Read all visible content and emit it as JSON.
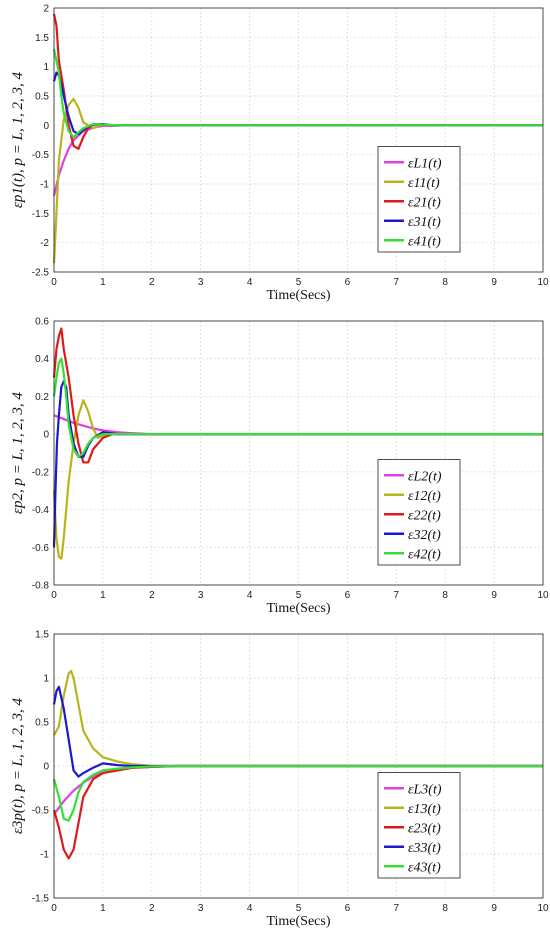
{
  "chart_data": [
    {
      "type": "line",
      "xlabel": "Time(Secs)",
      "ylabel": "εp1(t), p = L, 1, 2, 3, 4",
      "xlim": [
        0,
        10
      ],
      "ylim": [
        -2.5,
        2
      ],
      "xticks": [
        "0",
        "1",
        "2",
        "3",
        "4",
        "5",
        "6",
        "7",
        "8",
        "9",
        "10"
      ],
      "yticks": [
        "2",
        "1.5",
        "1",
        "0.5",
        "0",
        "-0.5",
        "-1",
        "-1.5",
        "-2",
        "-2.5"
      ],
      "grid": true,
      "legend_position": "lower-right",
      "series": [
        {
          "name": "εL1(t)",
          "color": "#e040e0",
          "x": [
            0,
            0.1,
            0.2,
            0.3,
            0.4,
            0.6,
            0.8,
            1.0,
            1.5,
            2,
            10
          ],
          "y": [
            -1.2,
            -0.85,
            -0.6,
            -0.4,
            -0.25,
            -0.1,
            -0.04,
            -0.01,
            0,
            0,
            0
          ]
        },
        {
          "name": "ε11(t)",
          "color": "#b8b41a",
          "x": [
            0,
            0.05,
            0.1,
            0.2,
            0.3,
            0.4,
            0.5,
            0.6,
            0.8,
            1.0,
            1.2,
            1.5,
            10
          ],
          "y": [
            -2.35,
            -1.5,
            -0.6,
            0.1,
            0.35,
            0.45,
            0.3,
            0.05,
            -0.05,
            0.02,
            0,
            0,
            0
          ]
        },
        {
          "name": "ε21(t)",
          "color": "#dd1a1a",
          "x": [
            0,
            0.05,
            0.1,
            0.2,
            0.3,
            0.4,
            0.5,
            0.6,
            0.7,
            0.8,
            1.0,
            1.2,
            1.5,
            10
          ],
          "y": [
            1.9,
            1.7,
            1.1,
            0.6,
            0.0,
            -0.35,
            -0.4,
            -0.2,
            -0.05,
            0.02,
            0.01,
            0,
            0,
            0
          ]
        },
        {
          "name": "ε31(t)",
          "color": "#1a1acc",
          "x": [
            0,
            0.05,
            0.1,
            0.15,
            0.2,
            0.3,
            0.4,
            0.5,
            0.6,
            0.7,
            0.8,
            1.0,
            1.2,
            1.5,
            10
          ],
          "y": [
            0.75,
            0.9,
            0.85,
            0.7,
            0.5,
            0.15,
            -0.1,
            -0.15,
            -0.08,
            -0.02,
            0.01,
            0.02,
            0,
            0,
            0
          ]
        },
        {
          "name": "ε41(t)",
          "color": "#33e033",
          "x": [
            0,
            0.05,
            0.1,
            0.15,
            0.2,
            0.3,
            0.4,
            0.5,
            0.6,
            0.8,
            1.0,
            1.5,
            10
          ],
          "y": [
            1.3,
            1.1,
            0.9,
            0.5,
            0.2,
            -0.1,
            -0.2,
            -0.12,
            -0.05,
            0.02,
            0.01,
            0,
            0
          ]
        }
      ]
    },
    {
      "type": "line",
      "xlabel": "Time(Secs)",
      "ylabel": "εp2, p = L, 1, 2, 3, 4",
      "xlim": [
        0,
        10
      ],
      "ylim": [
        -0.8,
        0.6
      ],
      "xticks": [
        "0",
        "1",
        "2",
        "3",
        "4",
        "5",
        "6",
        "7",
        "8",
        "9",
        "10"
      ],
      "yticks": [
        "0.6",
        "0.4",
        "0.2",
        "0",
        "-0.2",
        "-0.4",
        "-0.6",
        "-0.8"
      ],
      "grid": true,
      "legend_position": "lower-right",
      "series": [
        {
          "name": "εL2(t)",
          "color": "#e040e0",
          "x": [
            0,
            0.2,
            0.4,
            0.6,
            0.8,
            1.0,
            1.3,
            1.6,
            2,
            10
          ],
          "y": [
            0.1,
            0.08,
            0.06,
            0.045,
            0.03,
            0.02,
            0.01,
            0.005,
            0,
            0
          ]
        },
        {
          "name": "ε12(t)",
          "color": "#b8b41a",
          "x": [
            0,
            0.05,
            0.1,
            0.15,
            0.2,
            0.25,
            0.3,
            0.35,
            0.4,
            0.5,
            0.6,
            0.7,
            0.8,
            0.9,
            1.0,
            1.2,
            1.5,
            10
          ],
          "y": [
            -0.3,
            -0.55,
            -0.65,
            -0.66,
            -0.55,
            -0.4,
            -0.25,
            -0.15,
            -0.05,
            0.1,
            0.18,
            0.12,
            0.03,
            -0.02,
            -0.01,
            0,
            0,
            0
          ]
        },
        {
          "name": "ε22(t)",
          "color": "#dd1a1a",
          "x": [
            0,
            0.05,
            0.1,
            0.15,
            0.2,
            0.3,
            0.4,
            0.5,
            0.6,
            0.7,
            0.8,
            1.0,
            1.2,
            1.5,
            10
          ],
          "y": [
            0.3,
            0.45,
            0.52,
            0.56,
            0.45,
            0.3,
            0.1,
            -0.05,
            -0.15,
            -0.15,
            -0.08,
            -0.02,
            0.0,
            0,
            0
          ]
        },
        {
          "name": "ε32(t)",
          "color": "#1a1acc",
          "x": [
            0,
            0.03,
            0.06,
            0.1,
            0.15,
            0.2,
            0.25,
            0.3,
            0.4,
            0.5,
            0.6,
            0.7,
            0.8,
            1.0,
            1.3,
            1.5,
            10
          ],
          "y": [
            -0.6,
            -0.3,
            -0.05,
            0.1,
            0.25,
            0.28,
            0.25,
            0.1,
            -0.05,
            -0.12,
            -0.12,
            -0.06,
            -0.02,
            0.01,
            0,
            0,
            0
          ]
        },
        {
          "name": "ε42(t)",
          "color": "#33e033",
          "x": [
            0,
            0.05,
            0.1,
            0.15,
            0.2,
            0.25,
            0.3,
            0.4,
            0.5,
            0.6,
            0.7,
            0.8,
            1.0,
            1.5,
            10
          ],
          "y": [
            0.2,
            0.3,
            0.38,
            0.4,
            0.32,
            0.2,
            0.05,
            -0.08,
            -0.12,
            -0.1,
            -0.05,
            -0.02,
            0.0,
            0,
            0
          ]
        }
      ]
    },
    {
      "type": "line",
      "xlabel": "Time(Secs)",
      "ylabel": "ε3p(t), p = L, 1, 2, 3, 4",
      "xlim": [
        0,
        10
      ],
      "ylim": [
        -1.5,
        1.5
      ],
      "xticks": [
        "0",
        "1",
        "2",
        "3",
        "4",
        "5",
        "6",
        "7",
        "8",
        "9",
        "10"
      ],
      "yticks": [
        "1.5",
        "1",
        "0.5",
        "0",
        "-0.5",
        "-1",
        "-1.5"
      ],
      "grid": true,
      "legend_position": "lower-right",
      "series": [
        {
          "name": "εL3(t)",
          "color": "#e040e0",
          "x": [
            0,
            0.2,
            0.4,
            0.6,
            0.8,
            1.0,
            1.3,
            1.6,
            2.0,
            2.5,
            3,
            10
          ],
          "y": [
            -0.55,
            -0.4,
            -0.28,
            -0.19,
            -0.12,
            -0.08,
            -0.04,
            -0.02,
            -0.01,
            0,
            0,
            0
          ]
        },
        {
          "name": "ε13(t)",
          "color": "#b8b41a",
          "x": [
            0,
            0.1,
            0.2,
            0.3,
            0.35,
            0.4,
            0.5,
            0.6,
            0.8,
            1.0,
            1.3,
            1.6,
            2,
            10
          ],
          "y": [
            0.35,
            0.45,
            0.8,
            1.05,
            1.08,
            1.0,
            0.7,
            0.4,
            0.2,
            0.1,
            0.05,
            0.02,
            0,
            0
          ]
        },
        {
          "name": "ε23(t)",
          "color": "#dd1a1a",
          "x": [
            0,
            0.1,
            0.2,
            0.3,
            0.4,
            0.5,
            0.6,
            0.8,
            1.0,
            1.3,
            1.6,
            2.0,
            2.5,
            10
          ],
          "y": [
            -0.5,
            -0.7,
            -0.95,
            -1.05,
            -0.95,
            -0.65,
            -0.35,
            -0.15,
            -0.08,
            -0.05,
            -0.02,
            -0.01,
            0,
            0
          ]
        },
        {
          "name": "ε33(t)",
          "color": "#1a1acc",
          "x": [
            0,
            0.05,
            0.1,
            0.2,
            0.3,
            0.4,
            0.5,
            0.6,
            0.8,
            1.0,
            1.3,
            1.6,
            2,
            10
          ],
          "y": [
            0.7,
            0.85,
            0.9,
            0.65,
            0.3,
            -0.05,
            -0.12,
            -0.08,
            -0.02,
            0.03,
            0.01,
            0,
            0,
            0
          ]
        },
        {
          "name": "ε43(t)",
          "color": "#33e033",
          "x": [
            0,
            0.1,
            0.2,
            0.3,
            0.4,
            0.5,
            0.6,
            0.8,
            1.0,
            1.3,
            1.6,
            2,
            2.5,
            10
          ],
          "y": [
            -0.15,
            -0.35,
            -0.6,
            -0.62,
            -0.5,
            -0.3,
            -0.18,
            -0.1,
            -0.05,
            -0.03,
            -0.015,
            -0.005,
            0,
            0
          ]
        }
      ]
    }
  ]
}
